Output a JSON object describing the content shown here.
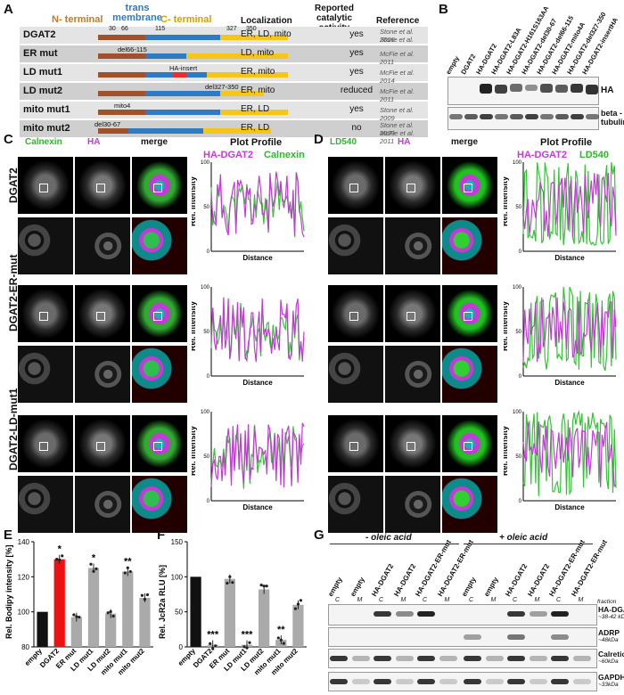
{
  "panels": {
    "A": "A",
    "B": "B",
    "C": "C",
    "D": "D",
    "E": "E",
    "F": "F",
    "G": "G"
  },
  "panelA": {
    "header_domains": {
      "n": "N- terminal",
      "tm": "trans membrane",
      "c": "C- terminal"
    },
    "col_headers": {
      "loc": "Localization",
      "activity": "Reported catalytic activity",
      "ref": "Reference"
    },
    "positions": [
      "30",
      "66",
      "115",
      "327",
      "350"
    ],
    "rows": [
      {
        "name": "DGAT2",
        "note": "",
        "loc": "ER, LD, mito",
        "act": "yes",
        "ref": "Stone et al. 2006\nStone et al. 2009"
      },
      {
        "name": "ER mut",
        "note": "del66-115",
        "loc": "LD, mito",
        "act": "yes",
        "ref": "McFie et al. 2011"
      },
      {
        "name": "LD mut1",
        "note": "HA-insert",
        "loc": "ER, mito",
        "act": "yes",
        "ref": "McFie et al. 2014"
      },
      {
        "name": "LD mut2",
        "note": "del327-350",
        "loc": "ER, mito",
        "act": "reduced",
        "ref": "McFie et al. 2011"
      },
      {
        "name": "mito mut1",
        "note": "mito4",
        "loc": "ER, LD",
        "act": "yes",
        "ref": "Stone et al. 2009"
      },
      {
        "name": "mito mut2",
        "note": "del30-67",
        "loc": "ER, LD",
        "act": "no",
        "ref": "Stone et al. 2009\nMcFie et al. 2011"
      }
    ]
  },
  "panelB": {
    "lanes": [
      "empty",
      "DGAT2",
      "HA-DGAT2",
      "HA-DGAT2-L83A",
      "HA-DGAT2-H161S163AA",
      "HA-DGAT2-del30-67",
      "HA-DGAT2-del66-115",
      "HA-DGAT2-mito4A",
      "HA-DGAT2-del327-350",
      "HA-DGAT2-insertHA"
    ],
    "blots": [
      "HA",
      "beta - tubulin"
    ]
  },
  "panelC": {
    "channels": [
      "Calnexin",
      "HA",
      "merge"
    ],
    "profile_title": "Plot Profile",
    "legend": [
      "HA-DGAT2",
      "Calnexin"
    ],
    "rows": [
      "DGAT2",
      "DGAT2-ER-mut",
      "DGAT2-LD-mut1"
    ],
    "ylabel": "Rel. Intensity",
    "xlabel": "Distance",
    "yticks": [
      "0",
      "50",
      "100"
    ]
  },
  "panelD": {
    "channels": [
      "LD540",
      "HA",
      "merge"
    ],
    "profile_title": "Plot Profile",
    "legend": [
      "HA-DGAT2",
      "LD540"
    ]
  },
  "panelE": {
    "ylabel": "Rel. Bodipy intensity [%]",
    "yticks": [
      "80",
      "100",
      "120",
      "140"
    ],
    "chart_data": {
      "type": "bar",
      "categories": [
        "empty",
        "DGAT2",
        "ER mut",
        "LD mut1",
        "LD mut2",
        "mito mut1",
        "mito mut2"
      ],
      "values": [
        100,
        130,
        97,
        125,
        99,
        123,
        108
      ],
      "ylim": [
        80,
        140
      ],
      "significance": [
        "",
        "*",
        "",
        "*",
        "",
        "**",
        ""
      ]
    }
  },
  "panelF": {
    "ylabel": "Rel. JcR2a RLU [%]",
    "yticks": [
      "0",
      "50",
      "100",
      "150"
    ],
    "chart_data": {
      "type": "bar",
      "categories": [
        "empty",
        "DGAT2",
        "ER mut",
        "LD mut1",
        "LD mut2",
        "mito mut1",
        "mito mut2"
      ],
      "values": [
        100,
        3,
        97,
        3,
        82,
        10,
        60
      ],
      "ylim": [
        0,
        150
      ],
      "significance": [
        "",
        "***",
        "",
        "***",
        "",
        "**",
        ""
      ]
    }
  },
  "panelG": {
    "conditions": [
      "- oleic acid",
      "+ oleic acid"
    ],
    "lanes": [
      "empty",
      "empty",
      "HA-DGAT2",
      "HA-DGAT2",
      "HA-DGAT2-ER-mut",
      "HA-DGAT2-ER-mut"
    ],
    "fractions": [
      "C",
      "M",
      "C",
      "M",
      "C",
      "M"
    ],
    "fraction_label": "fraction",
    "blots": [
      {
        "name": "HA-DGAT2",
        "size": "~38-42 kDa"
      },
      {
        "name": "ADRP",
        "size": "~48kDa"
      },
      {
        "name": "Calreticulin",
        "size": "~60kDa"
      },
      {
        "name": "GAPDH",
        "size": "~33kDa"
      }
    ]
  },
  "colors": {
    "ntermBrown": "#a0522d",
    "tmBlue": "#2e7bc4",
    "ctermYellow": "#f5c518",
    "magenta": "#c23bd4",
    "green": "#33c533",
    "red": "#e11",
    "grey": "#aaa"
  }
}
